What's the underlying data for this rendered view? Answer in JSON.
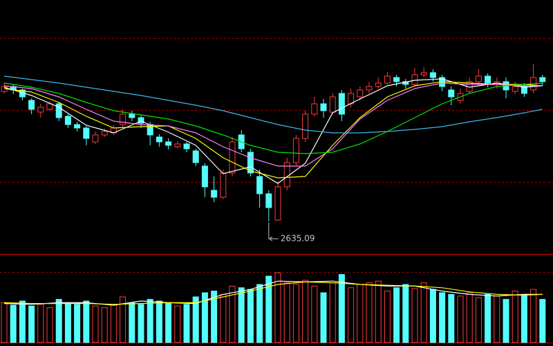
{
  "chart_data": {
    "type": "candlestick",
    "ylim": [
      2400,
      4235
    ],
    "gridlines": [
      2920,
      3440,
      3960
    ],
    "up_color": "#ff3c3c",
    "down_color": "#54fcfc",
    "open": [
      3575,
      3610,
      3585,
      3510,
      3425,
      3445,
      3485,
      3395,
      3335,
      3310,
      3210,
      3260,
      3275,
      3335,
      3410,
      3385,
      3335,
      3245,
      3210,
      3175,
      3195,
      3145,
      3035,
      2860,
      2810,
      2985,
      3260,
      3135,
      2960,
      2835,
      2645,
      2885,
      3060,
      3235,
      3410,
      3485,
      3425,
      3560,
      3485,
      3535,
      3585,
      3610,
      3635,
      3675,
      3645,
      3625,
      3695,
      3710,
      3675,
      3585,
      3510,
      3575,
      3645,
      3685,
      3625,
      3645,
      3575,
      3610,
      3585,
      3675
    ],
    "close": [
      3610,
      3585,
      3535,
      3445,
      3460,
      3485,
      3385,
      3335,
      3310,
      3235,
      3260,
      3285,
      3310,
      3410,
      3385,
      3345,
      3260,
      3210,
      3185,
      3195,
      3160,
      3060,
      2885,
      2810,
      2985,
      3210,
      3160,
      2985,
      2835,
      2735,
      2885,
      3060,
      3235,
      3410,
      3485,
      3435,
      3535,
      3410,
      3560,
      3585,
      3610,
      3635,
      3685,
      3645,
      3625,
      3695,
      3710,
      3675,
      3610,
      3535,
      3560,
      3645,
      3685,
      3635,
      3645,
      3585,
      3610,
      3560,
      3675,
      3645
    ],
    "high": [
      3635,
      3625,
      3595,
      3525,
      3485,
      3505,
      3500,
      3410,
      3355,
      3325,
      3285,
      3305,
      3335,
      3445,
      3435,
      3405,
      3355,
      3265,
      3235,
      3215,
      3210,
      3160,
      3055,
      2960,
      3010,
      3245,
      3295,
      3160,
      3010,
      2860,
      2925,
      3095,
      3260,
      3435,
      3535,
      3520,
      3560,
      3585,
      3595,
      3610,
      3645,
      3675,
      3715,
      3695,
      3665,
      3745,
      3750,
      3735,
      3695,
      3610,
      3595,
      3675,
      3735,
      3705,
      3675,
      3675,
      3645,
      3635,
      3775,
      3695
    ],
    "low": [
      3560,
      3555,
      3510,
      3410,
      3385,
      3435,
      3360,
      3310,
      3285,
      3185,
      3195,
      3245,
      3260,
      3310,
      3360,
      3310,
      3185,
      3175,
      3155,
      3160,
      3135,
      3035,
      2810,
      2775,
      2795,
      2960,
      3135,
      2960,
      2735,
      2635.09,
      2640,
      2860,
      3035,
      3210,
      3395,
      3385,
      3410,
      3360,
      3460,
      3510,
      3560,
      3595,
      3625,
      3610,
      3595,
      3610,
      3675,
      3645,
      3575,
      3475,
      3485,
      3555,
      3635,
      3605,
      3595,
      3525,
      3555,
      3535,
      3560,
      3615
    ],
    "ma_x": [
      0,
      3,
      6,
      9,
      12,
      15,
      18,
      21,
      24,
      27,
      30,
      33,
      36,
      39,
      42,
      45,
      48,
      51,
      54,
      57,
      59
    ],
    "ma_lines": [
      {
        "color": "#ffffff",
        "values": [
          3605,
          3545,
          3460,
          3330,
          3275,
          3360,
          3280,
          3185,
          2980,
          3030,
          2910,
          3055,
          3420,
          3520,
          3615,
          3655,
          3665,
          3605,
          3635,
          3605,
          3615
        ]
      },
      {
        "color": "#ffff00",
        "values": [
          3595,
          3570,
          3495,
          3395,
          3310,
          3320,
          3325,
          3235,
          3095,
          3000,
          2950,
          2960,
          3185,
          3385,
          3535,
          3615,
          3645,
          3635,
          3625,
          3625,
          3615
        ]
      },
      {
        "color": "#ff80ff",
        "values": [
          3615,
          3595,
          3535,
          3445,
          3360,
          3335,
          3325,
          3275,
          3175,
          3095,
          3035,
          3035,
          3160,
          3375,
          3510,
          3595,
          3635,
          3625,
          3625,
          3615,
          3615
        ]
      },
      {
        "color": "#00e600",
        "values": [
          3635,
          3605,
          3560,
          3495,
          3435,
          3405,
          3375,
          3325,
          3260,
          3185,
          3135,
          3125,
          3135,
          3195,
          3285,
          3385,
          3485,
          3560,
          3610,
          3625,
          3635
        ]
      },
      {
        "color": "#40b8ec",
        "values": [
          3685,
          3660,
          3635,
          3605,
          3575,
          3545,
          3510,
          3475,
          3435,
          3385,
          3335,
          3295,
          3275,
          3275,
          3285,
          3300,
          3320,
          3355,
          3385,
          3420,
          3445
        ]
      }
    ],
    "volume": {
      "vlim": [
        0,
        100
      ],
      "gridlines": [
        85
      ],
      "values": [
        48,
        45,
        50,
        44,
        46,
        42,
        52,
        48,
        46,
        50,
        44,
        42,
        45,
        55,
        48,
        46,
        52,
        50,
        48,
        44,
        46,
        55,
        60,
        62,
        58,
        68,
        66,
        64,
        70,
        80,
        84,
        72,
        70,
        75,
        68,
        60,
        72,
        82,
        66,
        70,
        72,
        74,
        62,
        66,
        70,
        65,
        72,
        64,
        60,
        58,
        56,
        60,
        54,
        58,
        56,
        52,
        62,
        58,
        64,
        52
      ],
      "ma_lines": [
        {
          "color": "#ffffff",
          "values": [
            47,
            46,
            48,
            48,
            45,
            50,
            48,
            47,
            58,
            64,
            74,
            73,
            74,
            70,
            68,
            68,
            62,
            58,
            56,
            58,
            58
          ]
        },
        {
          "color": "#ffff00",
          "values": [
            48,
            47,
            47,
            47,
            46,
            47,
            48,
            48,
            55,
            62,
            70,
            73,
            72,
            70,
            69,
            68,
            66,
            61,
            58,
            57,
            58
          ]
        }
      ]
    },
    "annotation": "2635.09"
  }
}
